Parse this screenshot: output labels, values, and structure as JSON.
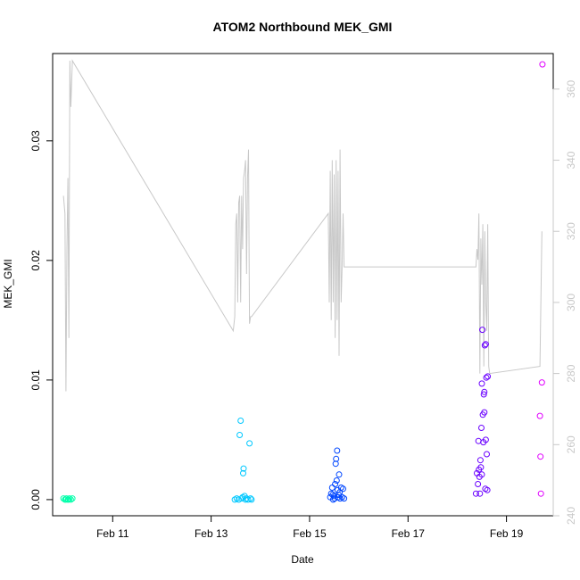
{
  "chart_data": {
    "type": "scatter",
    "title": "ATOM2 Northbound MEK_GMI",
    "xlabel": "Date",
    "ylabel": "MEK_GMI",
    "x_tick_labels": [
      "Feb 11",
      "Feb 13",
      "Feb 15",
      "Feb 17",
      "Feb 19"
    ],
    "x_tick_values": [
      11,
      13,
      15,
      17,
      19
    ],
    "xlim": [
      9.78,
      19.95
    ],
    "ylim": [
      -0.00135,
      0.0373
    ],
    "y_ticks": [
      0.0,
      0.01,
      0.02,
      0.03
    ],
    "y_tick_labels": [
      "0.00",
      "0.01",
      "0.02",
      "0.03"
    ],
    "y2lim": [
      240,
      370
    ],
    "y2_ticks": [
      240,
      260,
      280,
      300,
      320,
      340,
      360
    ],
    "y2_tick_labels": [
      "240",
      "260",
      "280",
      "300",
      "320",
      "340",
      "360"
    ],
    "y2_color": "#c8c8c8",
    "points": [
      {
        "x": 10.0,
        "y": 0.0001,
        "c": "#00ffaa"
      },
      {
        "x": 10.03,
        "y": 0.0,
        "c": "#00ffaa"
      },
      {
        "x": 10.06,
        "y": 0.0001,
        "c": "#00ffaa"
      },
      {
        "x": 10.09,
        "y": 0.0,
        "c": "#00ffaa"
      },
      {
        "x": 10.12,
        "y": 0.0001,
        "c": "#00ffaa"
      },
      {
        "x": 10.15,
        "y": 0.0,
        "c": "#00ffaa"
      },
      {
        "x": 10.18,
        "y": 0.0001,
        "c": "#00ffaa"
      },
      {
        "x": 10.05,
        "y": 0.0,
        "c": "#00ffaa"
      },
      {
        "x": 10.1,
        "y": 0.0,
        "c": "#00ffaa"
      },
      {
        "x": 13.48,
        "y": 0.0,
        "c": "#00c8ff"
      },
      {
        "x": 13.52,
        "y": 0.0001,
        "c": "#00c8ff"
      },
      {
        "x": 13.56,
        "y": 0.0,
        "c": "#00c8ff"
      },
      {
        "x": 13.58,
        "y": 0.0054,
        "c": "#00c8ff"
      },
      {
        "x": 13.6,
        "y": 0.0066,
        "c": "#00c8ff"
      },
      {
        "x": 13.62,
        "y": 0.0001,
        "c": "#00c8ff"
      },
      {
        "x": 13.65,
        "y": 0.0022,
        "c": "#00c8ff"
      },
      {
        "x": 13.66,
        "y": 0.0026,
        "c": "#00c8ff"
      },
      {
        "x": 13.68,
        "y": 0.0003,
        "c": "#00c8ff"
      },
      {
        "x": 13.7,
        "y": 0.0,
        "c": "#00c8ff"
      },
      {
        "x": 13.72,
        "y": 0.0001,
        "c": "#00c8ff"
      },
      {
        "x": 13.75,
        "y": 0.0,
        "c": "#00c8ff"
      },
      {
        "x": 13.78,
        "y": 0.0047,
        "c": "#00c8ff"
      },
      {
        "x": 13.8,
        "y": 0.0001,
        "c": "#00c8ff"
      },
      {
        "x": 13.82,
        "y": 0.0,
        "c": "#00c8ff"
      },
      {
        "x": 13.64,
        "y": 0.0002,
        "c": "#00c8ff"
      },
      {
        "x": 15.42,
        "y": 0.0002,
        "c": "#0046ff"
      },
      {
        "x": 15.44,
        "y": 0.0005,
        "c": "#0046ff"
      },
      {
        "x": 15.46,
        "y": 0.001,
        "c": "#0046ff"
      },
      {
        "x": 15.48,
        "y": 0.0,
        "c": "#0046ff"
      },
      {
        "x": 15.5,
        "y": 0.0003,
        "c": "#0046ff"
      },
      {
        "x": 15.52,
        "y": 0.0013,
        "c": "#0046ff"
      },
      {
        "x": 15.53,
        "y": 0.003,
        "c": "#0046ff"
      },
      {
        "x": 15.54,
        "y": 0.0034,
        "c": "#0046ff"
      },
      {
        "x": 15.56,
        "y": 0.0041,
        "c": "#0046ff"
      },
      {
        "x": 15.57,
        "y": 0.0008,
        "c": "#0046ff"
      },
      {
        "x": 15.58,
        "y": 0.0002,
        "c": "#0046ff"
      },
      {
        "x": 15.6,
        "y": 0.0021,
        "c": "#0046ff"
      },
      {
        "x": 15.61,
        "y": 0.0006,
        "c": "#0046ff"
      },
      {
        "x": 15.62,
        "y": 0.0001,
        "c": "#0046ff"
      },
      {
        "x": 15.64,
        "y": 0.001,
        "c": "#0046ff"
      },
      {
        "x": 15.66,
        "y": 0.0002,
        "c": "#0046ff"
      },
      {
        "x": 15.68,
        "y": 0.0009,
        "c": "#0046ff"
      },
      {
        "x": 15.7,
        "y": 0.0001,
        "c": "#0046ff"
      },
      {
        "x": 15.47,
        "y": 0.0004,
        "c": "#0046ff"
      },
      {
        "x": 15.51,
        "y": 0.0001,
        "c": "#0046ff"
      },
      {
        "x": 15.55,
        "y": 0.0016,
        "c": "#0046ff"
      },
      {
        "x": 15.59,
        "y": 0.0004,
        "c": "#0046ff"
      },
      {
        "x": 18.38,
        "y": 0.0005,
        "c": "#6a00ff"
      },
      {
        "x": 18.4,
        "y": 0.0022,
        "c": "#6a00ff"
      },
      {
        "x": 18.42,
        "y": 0.0013,
        "c": "#6a00ff"
      },
      {
        "x": 18.43,
        "y": 0.0049,
        "c": "#6a00ff"
      },
      {
        "x": 18.45,
        "y": 0.0019,
        "c": "#6a00ff"
      },
      {
        "x": 18.46,
        "y": 0.0005,
        "c": "#6a00ff"
      },
      {
        "x": 18.48,
        "y": 0.0027,
        "c": "#6a00ff"
      },
      {
        "x": 18.49,
        "y": 0.006,
        "c": "#6a00ff"
      },
      {
        "x": 18.5,
        "y": 0.0097,
        "c": "#6a00ff"
      },
      {
        "x": 18.51,
        "y": 0.0142,
        "c": "#6a00ff"
      },
      {
        "x": 18.52,
        "y": 0.0071,
        "c": "#6a00ff"
      },
      {
        "x": 18.53,
        "y": 0.0048,
        "c": "#6a00ff"
      },
      {
        "x": 18.54,
        "y": 0.0088,
        "c": "#6a00ff"
      },
      {
        "x": 18.55,
        "y": 0.0073,
        "c": "#6a00ff"
      },
      {
        "x": 18.56,
        "y": 0.0129,
        "c": "#6a00ff"
      },
      {
        "x": 18.57,
        "y": 0.0009,
        "c": "#6a00ff"
      },
      {
        "x": 18.58,
        "y": 0.005,
        "c": "#6a00ff"
      },
      {
        "x": 18.59,
        "y": 0.0102,
        "c": "#6a00ff"
      },
      {
        "x": 18.6,
        "y": 0.0038,
        "c": "#6a00ff"
      },
      {
        "x": 18.61,
        "y": 0.0008,
        "c": "#6a00ff"
      },
      {
        "x": 18.62,
        "y": 0.0103,
        "c": "#6a00ff"
      },
      {
        "x": 18.47,
        "y": 0.0033,
        "c": "#6a00ff"
      },
      {
        "x": 18.5,
        "y": 0.0021,
        "c": "#6a00ff"
      },
      {
        "x": 18.55,
        "y": 0.009,
        "c": "#6a00ff"
      },
      {
        "x": 18.58,
        "y": 0.013,
        "c": "#6a00ff"
      },
      {
        "x": 18.44,
        "y": 0.0025,
        "c": "#6a00ff"
      },
      {
        "x": 19.68,
        "y": 0.007,
        "c": "#e100ff"
      },
      {
        "x": 19.69,
        "y": 0.0036,
        "c": "#e100ff"
      },
      {
        "x": 19.7,
        "y": 0.0005,
        "c": "#e100ff"
      },
      {
        "x": 19.72,
        "y": 0.0098,
        "c": "#e100ff"
      },
      {
        "x": 19.73,
        "y": 0.0364,
        "c": "#e100ff"
      }
    ],
    "line_series": {
      "axis": "right",
      "color": "#c8c8c8",
      "x": [
        10.0,
        10.03,
        10.05,
        10.07,
        10.09,
        10.11,
        10.13,
        10.15,
        10.18,
        13.45,
        13.48,
        13.5,
        13.52,
        13.54,
        13.56,
        13.58,
        13.6,
        13.62,
        13.64,
        13.66,
        13.68,
        13.7,
        13.72,
        13.74,
        13.76,
        13.78,
        13.8,
        13.82,
        15.38,
        15.4,
        15.42,
        15.44,
        15.46,
        15.48,
        15.5,
        15.52,
        15.54,
        15.56,
        15.58,
        15.6,
        15.62,
        15.64,
        15.66,
        15.68,
        15.7,
        18.38,
        18.4,
        18.42,
        18.44,
        18.46,
        18.48,
        18.5,
        18.52,
        18.54,
        18.56,
        18.58,
        18.6,
        18.62,
        18.64,
        18.66,
        19.68,
        19.72
      ],
      "y": [
        330,
        325,
        275,
        315,
        335,
        290,
        368,
        355,
        368,
        292,
        296,
        322,
        325,
        300,
        328,
        330,
        300,
        330,
        315,
        335,
        337,
        340,
        308,
        335,
        343,
        294,
        296,
        296,
        325,
        300,
        337,
        295,
        340,
        300,
        336,
        290,
        340,
        295,
        337,
        285,
        343,
        300,
        310,
        325,
        310,
        310,
        315,
        312,
        325,
        280,
        318,
        305,
        322,
        282,
        320,
        300,
        292,
        322,
        282,
        280,
        282,
        320
      ]
    }
  }
}
